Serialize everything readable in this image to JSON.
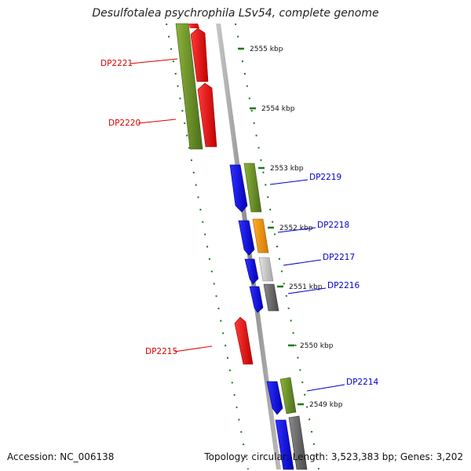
{
  "title": "Desulfotalea psychrophila LSv54, complete genome",
  "footer": {
    "accession": "Accession: NC_006138",
    "topology": "Topology: circular; Length: 3,523,383 bp; Genes: 3,202"
  },
  "colors": {
    "forward_label": "#0000cc",
    "reverse_label": "#dd0000",
    "backbone": "#9a9a9a",
    "tick": "#1a7a1a"
  },
  "ticks": [
    {
      "label": "2555 kbp"
    },
    {
      "label": "2554 kbp"
    },
    {
      "label": "2553 kbp"
    },
    {
      "label": "2552 kbp"
    },
    {
      "label": "2551 kbp"
    },
    {
      "label": "2550 kbp"
    },
    {
      "label": "2549 kbp"
    }
  ],
  "genes": [
    {
      "name": "DP2221",
      "strand": "reverse"
    },
    {
      "name": "DP2220",
      "strand": "reverse"
    },
    {
      "name": "DP2219",
      "strand": "forward"
    },
    {
      "name": "DP2218",
      "strand": "forward"
    },
    {
      "name": "DP2217",
      "strand": "forward"
    },
    {
      "name": "DP2216",
      "strand": "forward"
    },
    {
      "name": "DP2215",
      "strand": "reverse"
    },
    {
      "name": "DP2214",
      "strand": "forward"
    }
  ]
}
